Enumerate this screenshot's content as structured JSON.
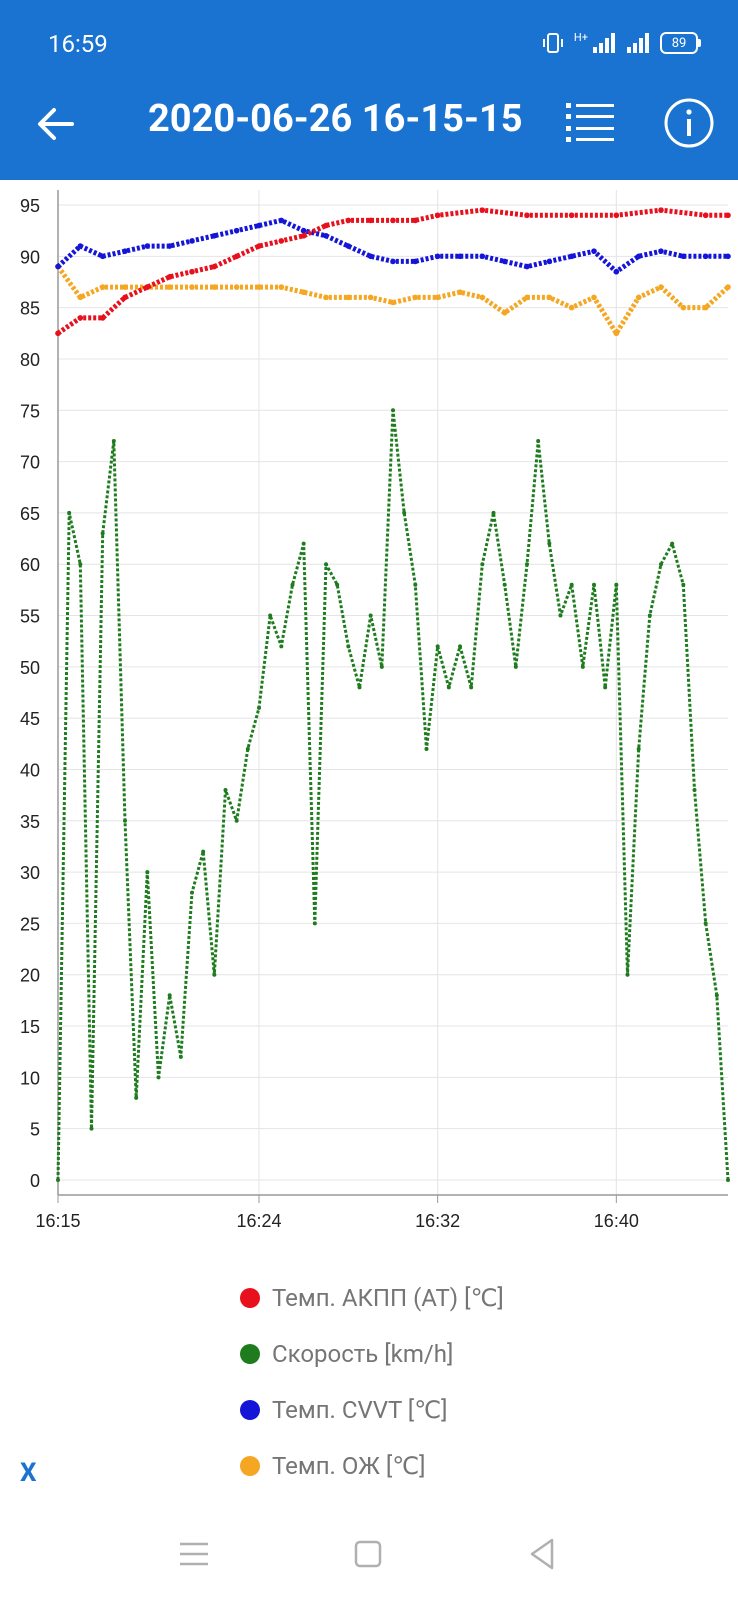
{
  "status_bar": {
    "time": "16:59",
    "network": "H+",
    "battery": "89"
  },
  "app_bar": {
    "title": "2020-06-26 16-15-15",
    "back_icon": "arrow-left-icon",
    "list_icon": "list-icon",
    "info_icon": "info-icon"
  },
  "colors": {
    "app_bar": "#1b73d1",
    "speed": "#1e7c1e",
    "akpp": "#e8101c",
    "cvvt": "#1515d8",
    "coolant": "#f5a623"
  },
  "legend": [
    {
      "label": "Темп. АКПП (AT) [℃]",
      "color": "#e8101c"
    },
    {
      "label": "Скорость [km/h]",
      "color": "#1e7c1e"
    },
    {
      "label": "Темп. CVVT [℃]",
      "color": "#1515d8"
    },
    {
      "label": "Темп. ОЖ [℃]",
      "color": "#f5a623"
    }
  ],
  "x_link": "X",
  "chart_data": {
    "type": "scatter",
    "x_label": "",
    "y_label": "",
    "ylim": [
      0,
      95
    ],
    "y_ticks": [
      "95",
      "90",
      "85",
      "80",
      "75",
      "70",
      "65",
      "60",
      "55",
      "50",
      "45",
      "40",
      "35",
      "30",
      "25",
      "20",
      "15",
      "10",
      "5",
      "0"
    ],
    "xlim": [
      "16:15",
      "16:45"
    ],
    "x_ticks": [
      "16:15",
      "16:24",
      "16:32",
      "16:40"
    ],
    "grid": true,
    "series": [
      {
        "name": "Темп. АКПП (AT) [℃]",
        "color": "#e8101c",
        "x": [
          "16:15",
          "16:16",
          "16:17",
          "16:18",
          "16:19",
          "16:20",
          "16:21",
          "16:22",
          "16:23",
          "16:24",
          "16:25",
          "16:26",
          "16:27",
          "16:28",
          "16:29",
          "16:30",
          "16:31",
          "16:32",
          "16:34",
          "16:36",
          "16:38",
          "16:40",
          "16:42",
          "16:44",
          "16:45"
        ],
        "y": [
          82.5,
          84,
          84,
          86,
          87,
          88,
          88.5,
          89,
          90,
          91,
          91.5,
          92,
          93,
          93.5,
          93.5,
          93.5,
          93.5,
          94,
          94.5,
          94,
          94,
          94,
          94.5,
          94,
          94
        ]
      },
      {
        "name": "Скорость [km/h]",
        "color": "#1e7c1e",
        "x": [
          "16:15",
          "16:15:30",
          "16:16",
          "16:16:30",
          "16:17",
          "16:17:30",
          "16:18",
          "16:18:30",
          "16:19",
          "16:19:30",
          "16:20",
          "16:20:30",
          "16:21",
          "16:21:30",
          "16:22",
          "16:22:30",
          "16:23",
          "16:23:30",
          "16:24",
          "16:24:30",
          "16:25",
          "16:25:30",
          "16:26",
          "16:26:30",
          "16:27",
          "16:27:30",
          "16:28",
          "16:28:30",
          "16:29",
          "16:29:30",
          "16:30",
          "16:30:30",
          "16:31",
          "16:31:30",
          "16:32",
          "16:32:30",
          "16:33",
          "16:33:30",
          "16:34",
          "16:34:30",
          "16:35",
          "16:35:30",
          "16:36",
          "16:36:30",
          "16:37",
          "16:37:30",
          "16:38",
          "16:38:30",
          "16:39",
          "16:39:30",
          "16:40",
          "16:40:30",
          "16:41",
          "16:41:30",
          "16:42",
          "16:42:30",
          "16:43",
          "16:43:30",
          "16:44",
          "16:44:30",
          "16:45"
        ],
        "y": [
          0,
          65,
          60,
          5,
          63,
          72,
          35,
          8,
          30,
          10,
          18,
          12,
          28,
          32,
          20,
          38,
          35,
          42,
          46,
          55,
          52,
          58,
          62,
          25,
          60,
          58,
          52,
          48,
          55,
          50,
          75,
          65,
          58,
          42,
          52,
          48,
          52,
          48,
          60,
          65,
          58,
          50,
          60,
          72,
          62,
          55,
          58,
          50,
          58,
          48,
          58,
          20,
          42,
          55,
          60,
          62,
          58,
          38,
          25,
          18,
          0
        ]
      },
      {
        "name": "Темп. CVVT [℃]",
        "color": "#1515d8",
        "x": [
          "16:15",
          "16:16",
          "16:17",
          "16:18",
          "16:19",
          "16:20",
          "16:21",
          "16:22",
          "16:23",
          "16:24",
          "16:25",
          "16:26",
          "16:27",
          "16:28",
          "16:29",
          "16:30",
          "16:31",
          "16:32",
          "16:33",
          "16:34",
          "16:35",
          "16:36",
          "16:37",
          "16:38",
          "16:39",
          "16:40",
          "16:41",
          "16:42",
          "16:43",
          "16:44",
          "16:45"
        ],
        "y": [
          89,
          91,
          90,
          90.5,
          91,
          91,
          91.5,
          92,
          92.5,
          93,
          93.5,
          92.5,
          92,
          91,
          90,
          89.5,
          89.5,
          90,
          90,
          90,
          89.5,
          89,
          89.5,
          90,
          90.5,
          88.5,
          90,
          90.5,
          90,
          90,
          90
        ]
      },
      {
        "name": "Темп. ОЖ [℃]",
        "color": "#f5a623",
        "x": [
          "16:15",
          "16:16",
          "16:17",
          "16:18",
          "16:19",
          "16:20",
          "16:21",
          "16:22",
          "16:23",
          "16:24",
          "16:25",
          "16:26",
          "16:27",
          "16:28",
          "16:29",
          "16:30",
          "16:31",
          "16:32",
          "16:33",
          "16:34",
          "16:35",
          "16:36",
          "16:37",
          "16:38",
          "16:39",
          "16:40",
          "16:41",
          "16:42",
          "16:43",
          "16:44",
          "16:45"
        ],
        "y": [
          89,
          86,
          87,
          87,
          87,
          87,
          87,
          87,
          87,
          87,
          87,
          86.5,
          86,
          86,
          86,
          85.5,
          86,
          86,
          86.5,
          86,
          84.5,
          86,
          86,
          85,
          86,
          82.5,
          86,
          87,
          85,
          85,
          87
        ]
      }
    ]
  }
}
